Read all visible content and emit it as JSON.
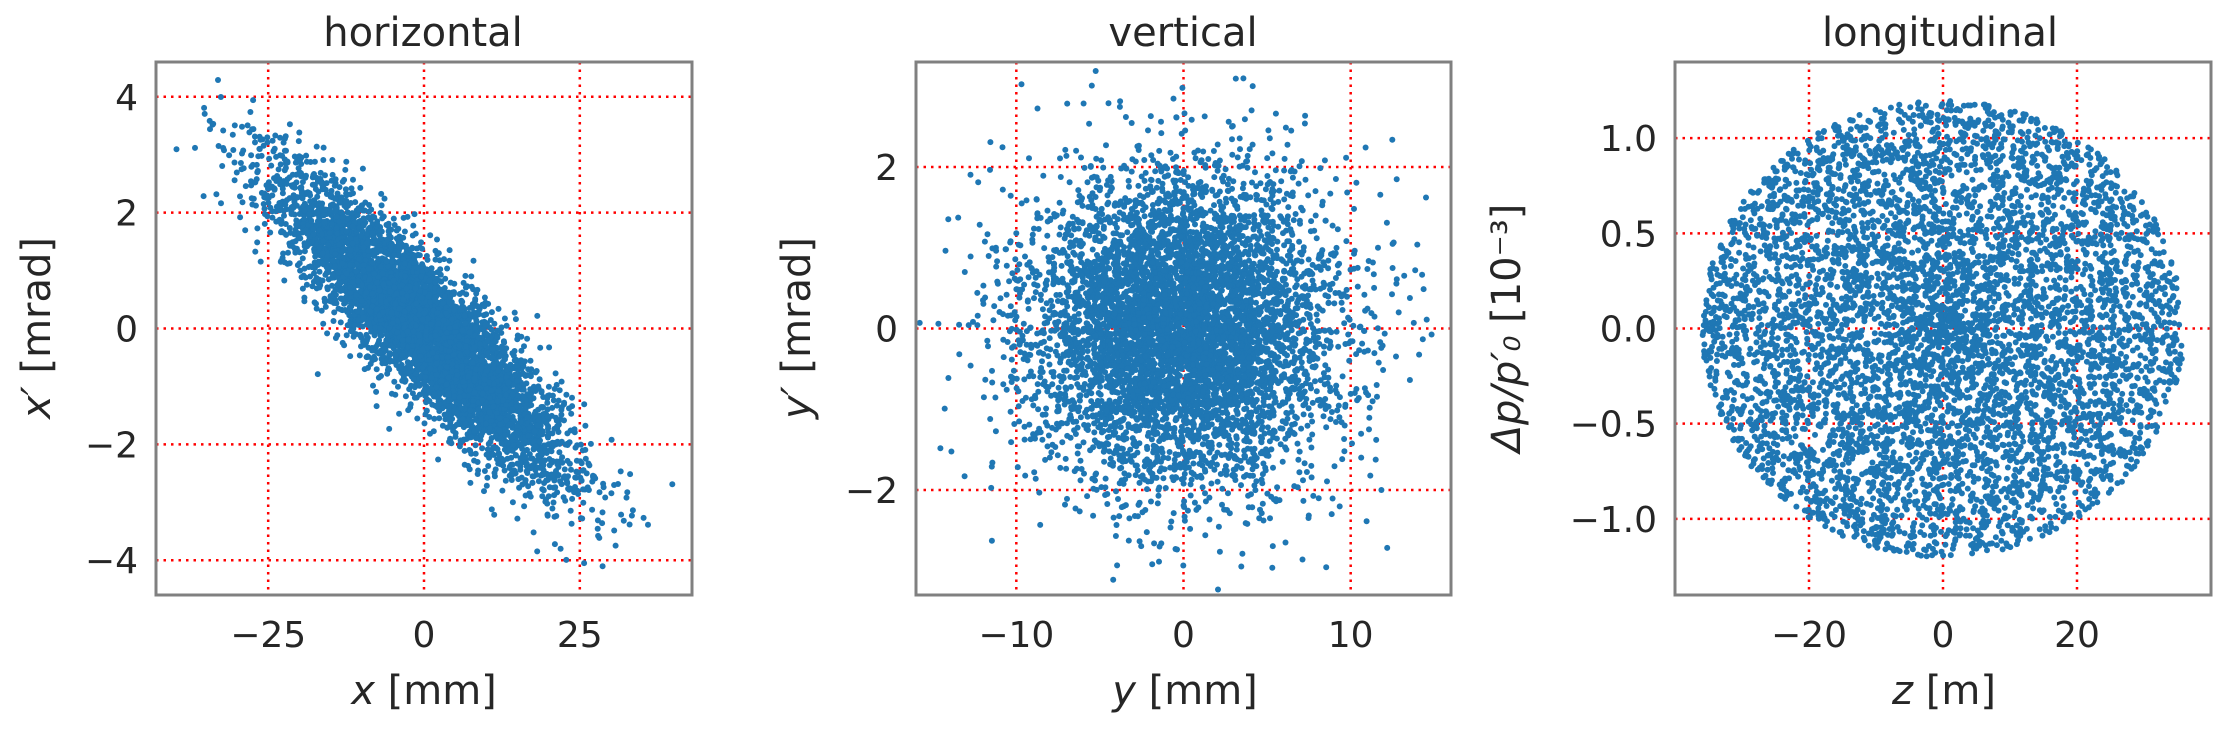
{
  "colors": {
    "point": "#1f77b4",
    "grid": "#ff0000",
    "frame": "#808080",
    "text": "#262626"
  },
  "chart_data": [
    {
      "type": "scatter",
      "title": "horizontal",
      "xlabel": "x [mm]",
      "xlabel_var": "x",
      "xlabel_unit": " [mm]",
      "ylabel": "x′ [mrad]",
      "ylabel_var": "x′",
      "ylabel_unit": " [mrad]",
      "xlim": [
        -43,
        43
      ],
      "ylim": [
        -4.6,
        4.6
      ],
      "xticks": [
        -25,
        0,
        25
      ],
      "xtick_labels": [
        "−25",
        "0",
        "25"
      ],
      "yticks": [
        -4,
        -2,
        0,
        2,
        4
      ],
      "ytick_labels": [
        "−4",
        "−2",
        "0",
        "2",
        "4"
      ],
      "grid": true,
      "distribution": {
        "shape": "correlated gaussian ellipse",
        "x_sigma_mm": 11,
        "y_sigma_mrad": 1.25,
        "correlation": -0.88,
        "n_points": 6000
      }
    },
    {
      "type": "scatter",
      "title": "vertical",
      "xlabel": "y [mm]",
      "xlabel_var": "y",
      "xlabel_unit": " [mm]",
      "ylabel": "y′ [mrad]",
      "ylabel_var": "y′",
      "ylabel_unit": " [mrad]",
      "xlim": [
        -16,
        16
      ],
      "ylim": [
        -3.3,
        3.3
      ],
      "xticks": [
        -10,
        0,
        10
      ],
      "xtick_labels": [
        "−10",
        "0",
        "10"
      ],
      "yticks": [
        -2,
        0,
        2
      ],
      "ytick_labels": [
        "−2",
        "0",
        "2"
      ],
      "grid": true,
      "distribution": {
        "shape": "uncorrelated gaussian disk",
        "x_sigma_mm": 4.5,
        "y_sigma_mrad": 0.95,
        "correlation": 0,
        "n_points": 6000
      }
    },
    {
      "type": "scatter",
      "title": "longitudinal",
      "xlabel": "z [m]",
      "xlabel_var": "z",
      "xlabel_unit": " [m]",
      "ylabel": "Δp/p′₀ [10⁻³]",
      "ylabel_var": "Δp/p′₀",
      "ylabel_unit": " [10⁻³]",
      "xlim": [
        -40,
        40
      ],
      "ylim": [
        -1.4,
        1.4
      ],
      "xticks": [
        -20,
        0,
        20
      ],
      "xtick_labels": [
        "−20",
        "0",
        "20"
      ],
      "yticks": [
        -1.0,
        -0.5,
        0.0,
        0.5,
        1.0
      ],
      "ytick_labels": [
        "−1.0",
        "−0.5",
        "0.0",
        "0.5",
        "1.0"
      ],
      "grid": true,
      "distribution": {
        "shape": "uniform-ish round disk",
        "x_radius_m": 36,
        "y_radius": 1.2,
        "correlation": 0,
        "n_points": 6000
      }
    }
  ]
}
